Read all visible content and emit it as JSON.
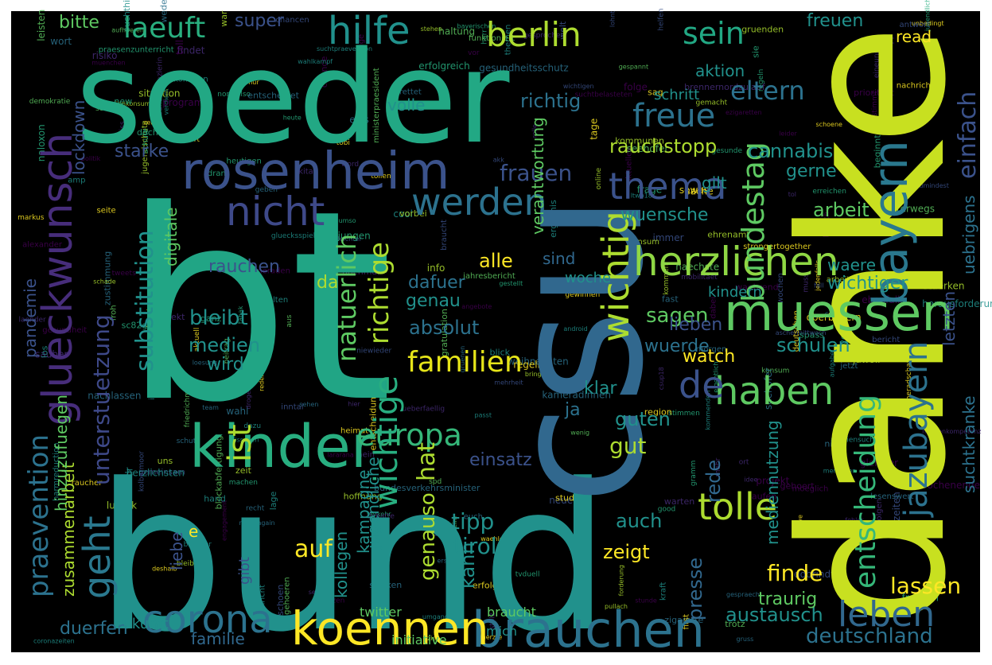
{
  "colors": {
    "page": "#ffffff",
    "canvas": "#000000",
    "palette": [
      "#440154",
      "#472d7b",
      "#3b528b",
      "#2c728e",
      "#21918c",
      "#28ae80",
      "#5ec962",
      "#addc30",
      "#fde725"
    ]
  },
  "words": [
    {
      "text": "bt",
      "c": "#21a585"
    },
    {
      "text": "bund",
      "c": "#21918c"
    },
    {
      "text": "danke",
      "c": "#c8e020"
    },
    {
      "text": "soeder",
      "c": "#22a884"
    },
    {
      "text": "csu",
      "c": "#31688e"
    },
    {
      "text": "kinder",
      "c": "#28ae80"
    },
    {
      "text": "rosenheim",
      "c": "#3b528b"
    },
    {
      "text": "brauchen",
      "c": "#2c728e"
    },
    {
      "text": "koennen",
      "c": "#fde725"
    },
    {
      "text": "muessen",
      "c": "#5ec962"
    },
    {
      "text": "bayern",
      "c": "#2a788e"
    },
    {
      "text": "glueckwunsch",
      "c": "#472d7b"
    },
    {
      "text": "corona",
      "c": "#2c728e"
    },
    {
      "text": "herzlichen",
      "c": "#8fd744"
    },
    {
      "text": "thema",
      "c": "#3b528b"
    },
    {
      "text": "nicht",
      "c": "#3e4989"
    },
    {
      "text": "werden",
      "c": "#2c728e"
    },
    {
      "text": "europa",
      "c": "#35b779"
    },
    {
      "text": "familien",
      "c": "#e5e419"
    },
    {
      "text": "haben",
      "c": "#5ec962"
    },
    {
      "text": "leben",
      "c": "#31688e"
    },
    {
      "text": "tolle",
      "c": "#addc30"
    },
    {
      "text": "wichtig",
      "c": "#addc30"
    },
    {
      "text": "de",
      "c": "#3b528b"
    },
    {
      "text": "freue",
      "c": "#2c728e"
    },
    {
      "text": "praevention",
      "c": "#2c728e"
    },
    {
      "text": "geht",
      "c": "#2a788e"
    },
    {
      "text": "ist",
      "c": "#addc30"
    },
    {
      "text": "hilfe",
      "c": "#21918c"
    },
    {
      "text": "laeuft",
      "c": "#29af7f"
    },
    {
      "text": "berlin",
      "c": "#addc30"
    },
    {
      "text": "sein",
      "c": "#22a884"
    },
    {
      "text": "bundestag",
      "c": "#5ec962"
    },
    {
      "text": "entscheidung",
      "c": "#35b779"
    },
    {
      "text": "jazubayern",
      "c": "#2c728e"
    },
    {
      "text": "einfach",
      "c": "#3b528b"
    },
    {
      "text": "eltern",
      "c": "#2c728e"
    },
    {
      "text": "unterstuetzung",
      "c": "#3e4989"
    },
    {
      "text": "substitution",
      "c": "#21918c"
    },
    {
      "text": "natuerlich",
      "c": "#5ec962"
    },
    {
      "text": "richtige",
      "c": "#addc30"
    },
    {
      "text": "wichtige",
      "c": "#28ae80"
    },
    {
      "text": "deutschland",
      "c": "#2c728e"
    },
    {
      "text": "austausch",
      "c": "#21918c"
    },
    {
      "text": "finde",
      "c": "#fde725"
    },
    {
      "text": "lassen",
      "c": "#fde725"
    },
    {
      "text": "tipp",
      "c": "#21918c"
    },
    {
      "text": "tirol",
      "c": "#21918c"
    },
    {
      "text": "hat",
      "c": "#addc30"
    },
    {
      "text": "genauso",
      "c": "#addc30"
    },
    {
      "text": "kann",
      "c": "#21918c"
    },
    {
      "text": "auf",
      "c": "#fde725"
    },
    {
      "text": "duerfen",
      "c": "#2c728e"
    },
    {
      "text": "familie",
      "c": "#31688e"
    },
    {
      "text": "medien",
      "c": "#21918c"
    },
    {
      "text": "bleibt",
      "c": "#21918c"
    },
    {
      "text": "wird",
      "c": "#21918c"
    },
    {
      "text": "frauen",
      "c": "#3b528b"
    },
    {
      "text": "dafuer",
      "c": "#2c728e"
    },
    {
      "text": "genau",
      "c": "#21918c"
    },
    {
      "text": "absolut",
      "c": "#2c728e"
    },
    {
      "text": "sagen",
      "c": "#5ec962"
    },
    {
      "text": "wuerde",
      "c": "#2c728e"
    },
    {
      "text": "lieben",
      "c": "#3b528b"
    },
    {
      "text": "schulen",
      "c": "#21918c"
    },
    {
      "text": "waere",
      "c": "#21918c"
    },
    {
      "text": "wichtiger",
      "c": "#21918c"
    },
    {
      "text": "arbeit",
      "c": "#5ec962"
    },
    {
      "text": "cannabis",
      "c": "#21918c"
    },
    {
      "text": "rauchstopp",
      "c": "#addc30"
    },
    {
      "text": "richtig",
      "c": "#2c728e"
    },
    {
      "text": "alle",
      "c": "#fde725"
    },
    {
      "text": "sind",
      "c": "#31688e"
    },
    {
      "text": "guten",
      "c": "#21918c"
    },
    {
      "text": "gut",
      "c": "#addc30"
    },
    {
      "text": "auch",
      "c": "#21918c"
    },
    {
      "text": "zeigt",
      "c": "#fde725"
    },
    {
      "text": "klar",
      "c": "#21918c"
    },
    {
      "text": "ja",
      "c": "#2c728e"
    },
    {
      "text": "rede",
      "c": "#31688e"
    },
    {
      "text": "traurig",
      "c": "#5ec962"
    },
    {
      "text": "presse",
      "c": "#31688e"
    },
    {
      "text": "suchtkranke",
      "c": "#2c728e"
    },
    {
      "text": "uebrigens",
      "c": "#2c728e"
    },
    {
      "text": "letzten",
      "c": "#3b528b"
    },
    {
      "text": "gerne",
      "c": "#21918c"
    },
    {
      "text": "gilt",
      "c": "#21918c"
    },
    {
      "text": "wuensche",
      "c": "#21918c"
    },
    {
      "text": "starke",
      "c": "#3b528b"
    },
    {
      "text": "rauchen",
      "c": "#3b528b"
    },
    {
      "text": "da",
      "c": "#addc30"
    },
    {
      "text": "pandemie",
      "c": "#3b528b"
    },
    {
      "text": "zusammenarbeit",
      "c": "#addc30"
    },
    {
      "text": "kollegen",
      "c": "#21918c"
    },
    {
      "text": "kampagne",
      "c": "#21918c"
    },
    {
      "text": "einsatz",
      "c": "#3b528b"
    },
    {
      "text": "woche",
      "c": "#21918c"
    },
    {
      "text": "watch",
      "c": "#fde725"
    },
    {
      "text": "kindern",
      "c": "#21918c"
    },
    {
      "text": "freuen",
      "c": "#21918c"
    },
    {
      "text": "aktion",
      "c": "#21918c"
    },
    {
      "text": "volle",
      "c": "#21918c"
    },
    {
      "text": "super",
      "c": "#3b528b"
    },
    {
      "text": "bitte",
      "c": "#5ec962"
    },
    {
      "text": "read",
      "c": "#fde725"
    },
    {
      "text": "schritt",
      "c": "#21918c"
    },
    {
      "text": "hinzuzufuegen",
      "c": "#5ec962"
    },
    {
      "text": "digitale",
      "c": "#5ec962"
    },
    {
      "text": "lockdown",
      "c": "#3b528b"
    },
    {
      "text": "medien­nutzung",
      "c": "#21918c"
    },
    {
      "text": "verantwortung",
      "c": "#5ec962"
    },
    {
      "text": "jugendliche",
      "c": "#21918c"
    },
    {
      "text": "liebe",
      "c": "#3b528b"
    },
    {
      "text": "e",
      "c": "#fde725"
    },
    {
      "text": "gibt",
      "c": "#3b528b"
    },
    {
      "text": "zukunft",
      "c": "#21918c"
    },
    {
      "text": "twitter",
      "c": "#5ec962"
    },
    {
      "text": "braucht",
      "c": "#5ec962"
    },
    {
      "text": "mich",
      "c": "#21918c"
    },
    {
      "text": "initiative",
      "c": "#5ec962"
    }
  ],
  "small_words": [
    "gruenen",
    "gesundheitsschutz",
    "lage",
    "bisschen",
    "findet",
    "umgang",
    "ltwb18",
    "beitrag",
    "leichter",
    "cdu",
    "kommenden",
    "praesenzunterricht",
    "gestern",
    "wochen",
    "gemacht",
    "fraktion",
    "gesprochen",
    "entscheidungen",
    "alexander",
    "herausforderungen",
    "impfen",
    "uns",
    "engagement",
    "sauber",
    "vor",
    "word",
    "weder",
    "froh",
    "spd",
    "online",
    "muenchen",
    "gewinnen",
    "gestellt",
    "erfolg",
    "arbeiten",
    "jawoll",
    "erfolgreich",
    "bundesverkehrsminister",
    "menschen",
    "medienkompetenz",
    "aktuell",
    "herr",
    "machen",
    "zeigen",
    "aufgabe",
    "kameraden",
    "raucher",
    "tweets",
    "dr",
    "gluecksspiel",
    "wahl",
    "folgen",
    "gemeinsam",
    "umso",
    "ort",
    "zigarette",
    "bringen",
    "morgen",
    "schnelle",
    "ebenfalls",
    "besuch",
    "jungen",
    "themen",
    "kita",
    "start",
    "angebote",
    "seite",
    "schoene",
    "moeglich",
    "sehen",
    "gehoeren",
    "helfen",
    "amp",
    "eineunion",
    "sinne",
    "cool",
    "mediensucht",
    "recht",
    "erstmal",
    "blockabfertigung",
    "zustimmung",
    "chancen",
    "gesundheit",
    "waehrend",
    "zeiten",
    "starken",
    "verkehr",
    "ergebnis",
    "grossartige",
    "kameradschaft",
    "zeit",
    "medienkonsum",
    "lohnt",
    "jugendlichen",
    "suchtbelasteten",
    "funktioniert",
    "unterwegs",
    "demokratie",
    "neue",
    "schutz",
    "tollen",
    "markus",
    "gesunde",
    "konsum",
    "gehoert",
    "gruss",
    "bedeutet",
    "verdient",
    "chance",
    "bekommen",
    "nachlassen",
    "passt",
    "tabak",
    "kommunen",
    "heimat",
    "naechste",
    "unbedingt",
    "zumindest",
    "forderung",
    "situation",
    "gratulation",
    "programm",
    "team",
    "jetzt",
    "frau",
    "reden",
    "nochmal",
    "klare",
    "rettet",
    "jugend",
    "laufen",
    "sache",
    "stunde",
    "tun",
    "heute",
    "warten",
    "spass",
    "brenner",
    "luczak",
    "ueberfaellig",
    "jahresbericht",
    "sucht",
    "suchthilfe",
    "schoen",
    "inntal",
    "harmreduction",
    "drogen",
    "drogenpolitik",
    "nachricht",
    "sowas",
    "prioritaet",
    "nix",
    "akk",
    "tobi",
    "antwort",
    "respekt",
    "pullach",
    "welt",
    "sag",
    "jedenfalls",
    "zahlen",
    "heutigen",
    "kolbermoor",
    "oberbayern",
    "dobrindt",
    "aerzte",
    "gespannt",
    "tage",
    "politik",
    "lararana",
    "seehofer",
    "neverforget",
    "staerken",
    "leisten",
    "aufhoeren",
    "immer",
    "projekt",
    "gramm",
    "weihnachten",
    "schade",
    "fehler",
    "wichtigen",
    "stimmt",
    "frage",
    "nachrichten",
    "haltung",
    "jugendschutz",
    "stimmen",
    "brennernordzulauf",
    "debatte",
    "lesenswert",
    "ascher­mittwoch",
    "bayerischen",
    "csup18",
    "tol",
    "stolz",
    "weiss",
    "deutschen",
    "studie",
    "dazu",
    "herzlich",
    "dabei",
    "toll",
    "hand",
    "doch",
    "laender",
    "kraft",
    "trotz",
    "gruenden",
    "tvduell",
    "gespraech",
    "worte",
    "idee",
    "normalso",
    "beides",
    "regeln",
    "friedrichmerz",
    "regeln",
    "fall",
    "eigentlich",
    "selber",
    "muss",
    "wort",
    "dran",
    "wenig",
    "risiko",
    "rolle",
    "sofort",
    "wochenende",
    "beim",
    "folge",
    "leider",
    "naloxon",
    "akzeptanz",
    "fast",
    "aus",
    "kommen",
    "region",
    "nein",
    "stehen",
    "live",
    "nutzen",
    "vorbei",
    "wahlkampf",
    "geben",
    "mobilitaet",
    "sc82g",
    "neveragain",
    "info",
    "eins",
    "hier",
    "konsum",
    "zeit",
    "good",
    "braucht",
    "mehrheit",
    "lkw",
    "bericht",
    "android",
    "niewieder",
    "deshalb",
    "ziel",
    "erreichen",
    "loesung",
    "bundeskanzlerin",
    "gleicher",
    "interessant",
    "sie",
    "ich",
    "new",
    "euch",
    "coronazeiten",
    "schule",
    "alten",
    "war",
    "jung",
    "nur",
    "sucht­praevention",
    "strongertogether",
    "waehlen",
    "ministerpraesident",
    "kameradinnen",
    "herzlichsten",
    "blick",
    "mehr",
    "bleiben",
    "ezigaretten",
    "lasst",
    "ehrenamt",
    "entscheidet",
    "first",
    "beginnt",
    "los",
    "aktuelles",
    "seehofer",
    "ganz",
    "hoffnung"
  ]
}
